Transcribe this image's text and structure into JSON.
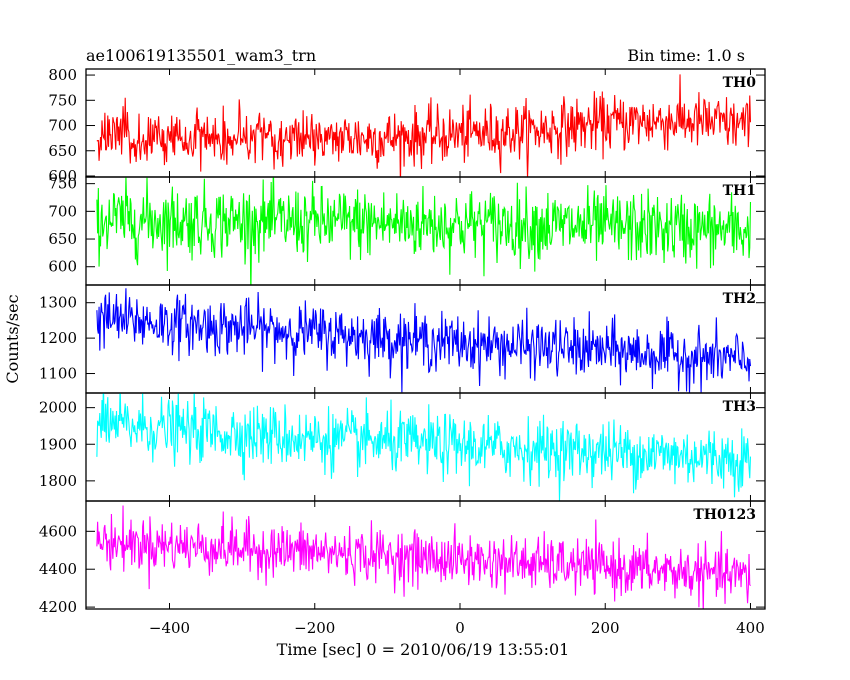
{
  "header": {
    "title": "ae100619135501_wam3_trn",
    "bin_time": "Bin time: 1.0 s"
  },
  "chart_data": {
    "type": "line",
    "xlabel": "Time [sec] 0 = 2010/06/19 13:55:01",
    "ylabel": "Counts/sec",
    "xlim": [
      -515,
      420
    ],
    "x_ticks": [
      -400,
      -200,
      0,
      200,
      400
    ],
    "x_tick_labels": [
      "−400",
      "−200",
      "0",
      "200",
      "400"
    ],
    "x_range": [
      -500,
      400
    ],
    "bin_time_s": 1.0,
    "grid": false,
    "panels": [
      {
        "name": "TH0",
        "color": "#ff0000",
        "ylim": [
          598,
          812
        ],
        "y_ticks": [
          600,
          650,
          700,
          750,
          800
        ],
        "trend": [
          [
            -500,
            680
          ],
          [
            -100,
            675
          ],
          [
            100,
            690
          ],
          [
            200,
            705
          ],
          [
            300,
            710
          ],
          [
            400,
            700
          ]
        ],
        "noise_sd": 28
      },
      {
        "name": "TH1",
        "color": "#00ff00",
        "ylim": [
          567,
          762
        ],
        "y_ticks": [
          600,
          650,
          700,
          750
        ],
        "trend": [
          [
            -500,
            685
          ],
          [
            -200,
            680
          ],
          [
            100,
            675
          ],
          [
            400,
            665
          ]
        ],
        "noise_sd": 32
      },
      {
        "name": "TH2",
        "color": "#0000ff",
        "ylim": [
          1045,
          1350
        ],
        "y_ticks": [
          1100,
          1200,
          1300
        ],
        "trend": [
          [
            -500,
            1255
          ],
          [
            -200,
            1215
          ],
          [
            0,
            1185
          ],
          [
            200,
            1165
          ],
          [
            400,
            1135
          ]
        ],
        "noise_sd": 40
      },
      {
        "name": "TH3",
        "color": "#00ffff",
        "ylim": [
          1745,
          2040
        ],
        "y_ticks": [
          1800,
          1900,
          2000
        ],
        "trend": [
          [
            -500,
            1955
          ],
          [
            -200,
            1915
          ],
          [
            0,
            1895
          ],
          [
            200,
            1880
          ],
          [
            400,
            1860
          ]
        ],
        "noise_sd": 42
      },
      {
        "name": "TH0123",
        "color": "#ff00ff",
        "ylim": [
          4190,
          4760
        ],
        "y_ticks": [
          4200,
          4400,
          4600
        ],
        "trend": [
          [
            -500,
            4545
          ],
          [
            -200,
            4490
          ],
          [
            0,
            4450
          ],
          [
            200,
            4410
          ],
          [
            400,
            4360
          ]
        ],
        "noise_sd": 70
      }
    ]
  }
}
